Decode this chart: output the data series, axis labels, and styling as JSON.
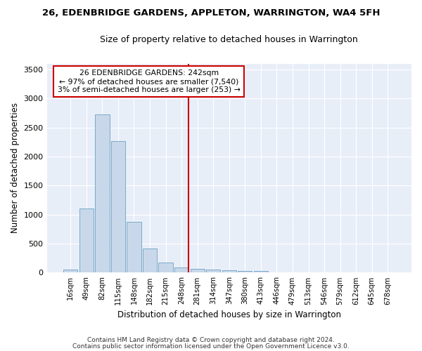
{
  "title": "26, EDENBRIDGE GARDENS, APPLETON, WARRINGTON, WA4 5FH",
  "subtitle": "Size of property relative to detached houses in Warrington",
  "xlabel": "Distribution of detached houses by size in Warrington",
  "ylabel": "Number of detached properties",
  "bar_color": "#c8d8ea",
  "bar_edge_color": "#7aaac8",
  "background_color": "#e8eef8",
  "grid_color": "#ffffff",
  "vline_color": "#cc0000",
  "annotation_text": "26 EDENBRIDGE GARDENS: 242sqm\n← 97% of detached houses are smaller (7,540)\n3% of semi-detached houses are larger (253) →",
  "annotation_box_color": "#cc0000",
  "categories": [
    "16sqm",
    "49sqm",
    "82sqm",
    "115sqm",
    "148sqm",
    "182sqm",
    "215sqm",
    "248sqm",
    "281sqm",
    "314sqm",
    "347sqm",
    "380sqm",
    "413sqm",
    "446sqm",
    "479sqm",
    "513sqm",
    "546sqm",
    "579sqm",
    "612sqm",
    "645sqm",
    "678sqm"
  ],
  "values": [
    50,
    1100,
    2720,
    2270,
    870,
    415,
    175,
    90,
    70,
    55,
    45,
    30,
    25,
    0,
    0,
    0,
    0,
    0,
    0,
    0,
    0
  ],
  "ylim": [
    0,
    3600
  ],
  "yticks": [
    0,
    500,
    1000,
    1500,
    2000,
    2500,
    3000,
    3500
  ],
  "footnote1": "Contains HM Land Registry data © Crown copyright and database right 2024.",
  "footnote2": "Contains public sector information licensed under the Open Government Licence v3.0."
}
